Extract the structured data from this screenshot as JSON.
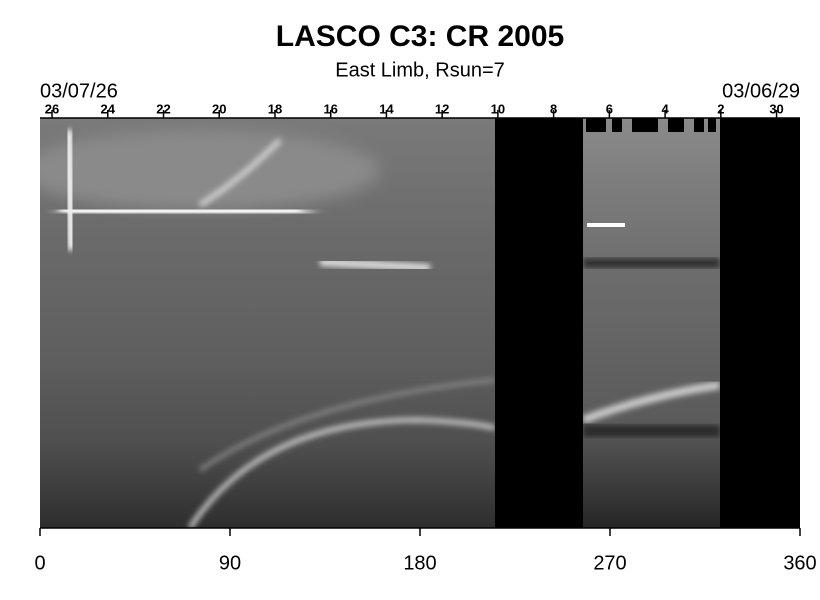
{
  "chart_data": {
    "type": "synoptic-map",
    "title": "LASCO C3: CR 2005",
    "subtitle": "East Limb, Rsun=7",
    "start_date": "03/07/26",
    "end_date": "03/06/29",
    "xlim": [
      0,
      360
    ],
    "xticks": [
      0,
      90,
      180,
      270,
      360
    ],
    "top_ticks": [
      {
        "value": 5.7,
        "label": "26"
      },
      {
        "value": 32.1,
        "label": "24"
      },
      {
        "value": 58.5,
        "label": "22"
      },
      {
        "value": 84.9,
        "label": "20"
      },
      {
        "value": 111.3,
        "label": "18"
      },
      {
        "value": 137.7,
        "label": "16"
      },
      {
        "value": 164.1,
        "label": "14"
      },
      {
        "value": 190.5,
        "label": "12"
      },
      {
        "value": 216.9,
        "label": "10"
      },
      {
        "value": 243.3,
        "label": "8"
      },
      {
        "value": 269.7,
        "label": "6"
      },
      {
        "value": 296.1,
        "label": "4"
      },
      {
        "value": 322.5,
        "label": "2"
      },
      {
        "value": 348.9,
        "label": "30"
      }
    ]
  }
}
